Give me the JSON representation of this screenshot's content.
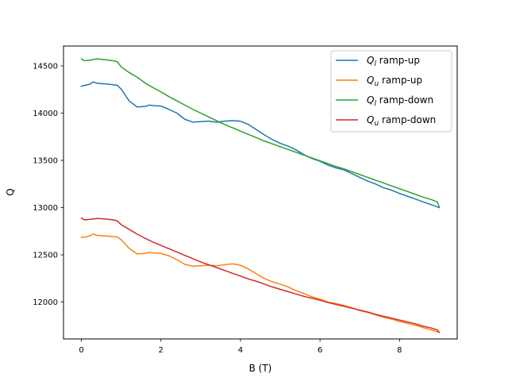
{
  "chart_data": {
    "type": "line",
    "xlabel": "B (T)",
    "ylabel": "Q",
    "xlim": [
      -0.45,
      9.45
    ],
    "ylim": [
      11610,
      14710
    ],
    "xticks": [
      0,
      2,
      4,
      6,
      8
    ],
    "yticks": [
      12000,
      12500,
      13000,
      13500,
      14000,
      14500
    ],
    "grid": false,
    "legend_position": "top-right",
    "series": [
      {
        "name": "Q_l ramp-up",
        "legend_main": "Q",
        "legend_sub": "l",
        "legend_suffix": " ramp-up",
        "color": "#1f77b4",
        "x": [
          0,
          0.1,
          0.2,
          0.3,
          0.4,
          0.6,
          0.9,
          1.0,
          1.2,
          1.4,
          1.6,
          1.7,
          1.8,
          2.0,
          2.2,
          2.4,
          2.6,
          2.8,
          3.0,
          3.2,
          3.4,
          3.6,
          3.8,
          4.0,
          4.2,
          4.4,
          4.6,
          4.8,
          5.0,
          5.2,
          5.4,
          5.6,
          5.8,
          6.0,
          6.2,
          6.4,
          6.6,
          6.8,
          7.0,
          7.2,
          7.4,
          7.6,
          7.8,
          8.0,
          8.2,
          8.4,
          8.6,
          8.8,
          9.0
        ],
        "y": [
          14285,
          14295,
          14305,
          14330,
          14315,
          14310,
          14295,
          14255,
          14130,
          14065,
          14070,
          14085,
          14080,
          14075,
          14040,
          14000,
          13935,
          13905,
          13910,
          13915,
          13905,
          13915,
          13920,
          13915,
          13880,
          13825,
          13770,
          13720,
          13680,
          13650,
          13610,
          13560,
          13520,
          13490,
          13450,
          13420,
          13400,
          13360,
          13320,
          13280,
          13250,
          13210,
          13185,
          13150,
          13120,
          13090,
          13060,
          13030,
          13000
        ]
      },
      {
        "name": "Q_u ramp-up",
        "legend_main": "Q",
        "legend_sub": "u",
        "legend_suffix": " ramp-up",
        "color": "#ff7f0e",
        "x": [
          0,
          0.1,
          0.2,
          0.3,
          0.4,
          0.6,
          0.9,
          1.0,
          1.2,
          1.4,
          1.6,
          1.7,
          1.8,
          2.0,
          2.2,
          2.4,
          2.6,
          2.8,
          3.0,
          3.2,
          3.4,
          3.6,
          3.8,
          4.0,
          4.2,
          4.4,
          4.6,
          4.8,
          5.0,
          5.2,
          5.4,
          5.6,
          5.8,
          6.0,
          6.2,
          6.4,
          6.6,
          6.8,
          7.0,
          7.2,
          7.4,
          7.6,
          7.8,
          8.0,
          8.2,
          8.4,
          8.6,
          8.8,
          9.0
        ],
        "y": [
          12685,
          12690,
          12700,
          12720,
          12705,
          12700,
          12690,
          12660,
          12570,
          12510,
          12515,
          12525,
          12520,
          12515,
          12490,
          12450,
          12400,
          12380,
          12385,
          12390,
          12385,
          12395,
          12405,
          12390,
          12350,
          12300,
          12250,
          12215,
          12190,
          12160,
          12120,
          12090,
          12055,
          12030,
          12000,
          11985,
          11965,
          11940,
          11910,
          11890,
          11865,
          11840,
          11820,
          11795,
          11775,
          11755,
          11730,
          11705,
          11680
        ]
      },
      {
        "name": "Q_l ramp-down",
        "legend_main": "Q",
        "legend_sub": "l",
        "legend_suffix": " ramp-down",
        "color": "#2ca02c",
        "x": [
          0,
          0.05,
          0.1,
          0.2,
          0.4,
          0.6,
          0.8,
          0.9,
          1.0,
          1.2,
          1.4,
          1.6,
          1.8,
          2.0,
          2.2,
          2.4,
          2.6,
          2.8,
          3.0,
          3.2,
          3.4,
          3.6,
          3.8,
          4.0,
          4.2,
          4.4,
          4.6,
          4.8,
          5.0,
          5.2,
          5.4,
          5.6,
          5.8,
          6.0,
          6.2,
          6.4,
          6.6,
          6.8,
          7.0,
          7.2,
          7.4,
          7.6,
          7.8,
          8.0,
          8.2,
          8.4,
          8.6,
          8.8,
          8.95,
          9.0
        ],
        "y": [
          14575,
          14560,
          14555,
          14560,
          14575,
          14565,
          14555,
          14545,
          14490,
          14430,
          14380,
          14320,
          14270,
          14225,
          14175,
          14130,
          14085,
          14040,
          14000,
          13960,
          13920,
          13880,
          13845,
          13810,
          13775,
          13740,
          13705,
          13675,
          13645,
          13615,
          13585,
          13555,
          13525,
          13495,
          13465,
          13435,
          13410,
          13380,
          13350,
          13320,
          13290,
          13260,
          13230,
          13200,
          13170,
          13140,
          13110,
          13085,
          13060,
          13005
        ]
      },
      {
        "name": "Q_u ramp-down",
        "legend_main": "Q",
        "legend_sub": "u",
        "legend_suffix": " ramp-down",
        "color": "#d62728",
        "x": [
          0,
          0.05,
          0.1,
          0.2,
          0.4,
          0.6,
          0.8,
          0.9,
          1.0,
          1.2,
          1.4,
          1.6,
          1.8,
          2.0,
          2.2,
          2.4,
          2.6,
          2.8,
          3.0,
          3.2,
          3.4,
          3.6,
          3.8,
          4.0,
          4.2,
          4.4,
          4.6,
          4.8,
          5.0,
          5.2,
          5.4,
          5.6,
          5.8,
          6.0,
          6.2,
          6.4,
          6.6,
          6.8,
          7.0,
          7.2,
          7.4,
          7.6,
          7.8,
          8.0,
          8.2,
          8.4,
          8.6,
          8.8,
          8.95,
          9.0
        ],
        "y": [
          12890,
          12875,
          12870,
          12875,
          12885,
          12880,
          12870,
          12860,
          12820,
          12770,
          12720,
          12675,
          12635,
          12600,
          12565,
          12530,
          12495,
          12460,
          12425,
          12395,
          12365,
          12335,
          12305,
          12275,
          12245,
          12220,
          12190,
          12160,
          12135,
          12110,
          12085,
          12060,
          12040,
          12020,
          11995,
          11975,
          11955,
          11935,
          11915,
          11895,
          11870,
          11850,
          11830,
          11810,
          11790,
          11770,
          11745,
          11725,
          11705,
          11680
        ]
      }
    ]
  }
}
